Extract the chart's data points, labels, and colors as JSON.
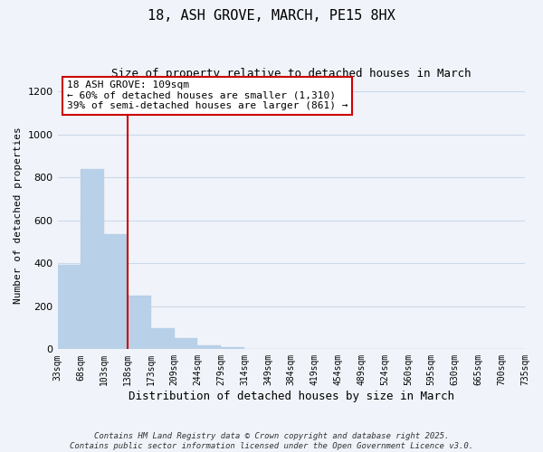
{
  "title": "18, ASH GROVE, MARCH, PE15 8HX",
  "subtitle": "Size of property relative to detached houses in March",
  "xlabel": "Distribution of detached houses by size in March",
  "ylabel": "Number of detached properties",
  "bar_values": [
    393,
    840,
    535,
    248,
    97,
    52,
    18,
    8,
    3,
    1,
    0,
    0,
    0,
    0,
    0,
    0,
    0,
    0,
    0,
    0
  ],
  "bar_labels": [
    "33sqm",
    "68sqm",
    "103sqm",
    "138sqm",
    "173sqm",
    "209sqm",
    "244sqm",
    "279sqm",
    "314sqm",
    "349sqm",
    "384sqm",
    "419sqm",
    "454sqm",
    "489sqm",
    "524sqm",
    "560sqm",
    "595sqm",
    "630sqm",
    "665sqm",
    "700sqm",
    "735sqm"
  ],
  "bar_color": "#b8d0e8",
  "bar_edge_color": "#b8d0e8",
  "vline_color": "#cc0000",
  "annotation_title": "18 ASH GROVE: 109sqm",
  "annotation_line1": "← 60% of detached houses are smaller (1,310)",
  "annotation_line2": "39% of semi-detached houses are larger (861) →",
  "annotation_box_edge_color": "#cc0000",
  "annotation_box_face_color": "#ffffff",
  "ylim": [
    0,
    1250
  ],
  "yticks": [
    0,
    200,
    400,
    600,
    800,
    1000,
    1200
  ],
  "grid_color": "#ccd8e8",
  "background_color": "#f0f4fa",
  "footnote1": "Contains HM Land Registry data © Crown copyright and database right 2025.",
  "footnote2": "Contains public sector information licensed under the Open Government Licence v3.0."
}
